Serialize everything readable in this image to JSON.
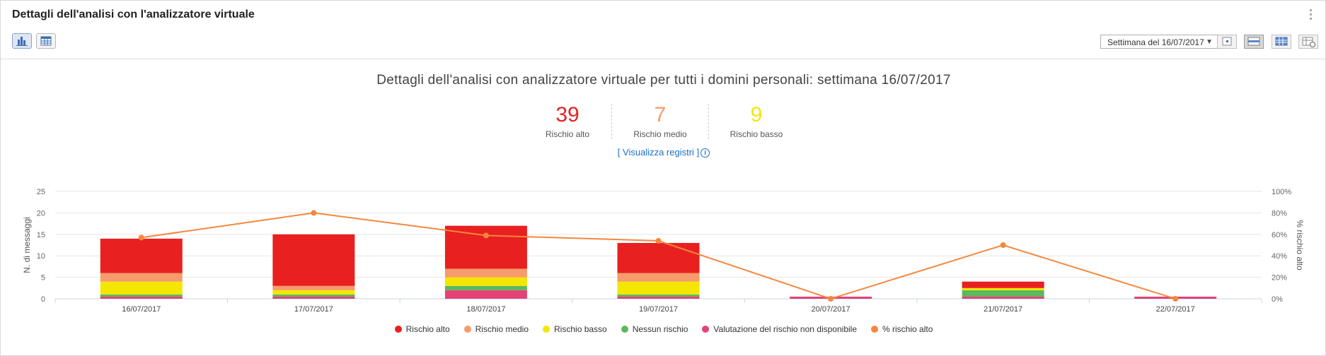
{
  "header": {
    "title": "Dettagli dell'analisi con l'analizzatore virtuale"
  },
  "toolbar": {
    "chart_view_icon": "bar-chart-icon",
    "table_view_icon": "table-icon",
    "week_select": "Settimana del 16/07/2017",
    "right_icons": [
      "day-view-icon",
      "week-view-icon",
      "month-view-icon",
      "calendar-range-icon"
    ]
  },
  "summary": {
    "title": "Dettagli dell'analisi con analizzatore virtuale per tutti i domini personali: settimana 16/07/2017",
    "stats": [
      {
        "value": "39",
        "label": "Rischio alto",
        "color": "#e82020"
      },
      {
        "value": "7",
        "label": "Rischio medio",
        "color": "#f79b6c"
      },
      {
        "value": "9",
        "label": "Rischio basso",
        "color": "#f4e600"
      }
    ],
    "link_prefix": "[ ",
    "link_text": "Visualizza registri",
    "link_suffix": " ]",
    "info_icon": "info-icon"
  },
  "chart_data": {
    "type": "bar",
    "stacked": true,
    "categories": [
      "16/07/2017",
      "17/07/2017",
      "18/07/2017",
      "19/07/2017",
      "20/07/2017",
      "21/07/2017",
      "22/07/2017"
    ],
    "ylabel": "N. di messaggi",
    "ylabel_right": "% rischio alto",
    "ylim": [
      0,
      25
    ],
    "yticks": [
      "0",
      "5",
      "10",
      "15",
      "20",
      "25"
    ],
    "y2lim": [
      0,
      100
    ],
    "y2ticks": [
      "0%",
      "20%",
      "40%",
      "60%",
      "80%",
      "100%"
    ],
    "grid": true,
    "legend_position": "bottom",
    "series": [
      {
        "name": "Valutazione del rischio non disponibile",
        "color": "#e5427a",
        "values": [
          0.5,
          0.5,
          2,
          0.5,
          0.5,
          0.5,
          0.5
        ]
      },
      {
        "name": "Nessun rischio",
        "color": "#5cb85c",
        "values": [
          0.5,
          0.5,
          1,
          0.5,
          0,
          1.5,
          0
        ]
      },
      {
        "name": "Rischio basso",
        "color": "#f4e600",
        "values": [
          3,
          1,
          2,
          3,
          0,
          0.5,
          0
        ]
      },
      {
        "name": "Rischio medio",
        "color": "#f79b6c",
        "values": [
          2,
          1,
          2,
          2,
          0,
          0,
          0
        ]
      },
      {
        "name": "Rischio alto",
        "color": "#e82020",
        "values": [
          8,
          12,
          10,
          7,
          0,
          1.5,
          0
        ]
      }
    ],
    "line_series": {
      "name": "% rischio alto",
      "color": "#f5873d",
      "values": [
        57,
        80,
        59,
        54,
        0,
        50,
        0
      ]
    },
    "legend_order": [
      "Rischio alto",
      "Rischio medio",
      "Rischio basso",
      "Nessun rischio",
      "Valutazione del rischio non disponibile",
      "% rischio alto"
    ]
  }
}
